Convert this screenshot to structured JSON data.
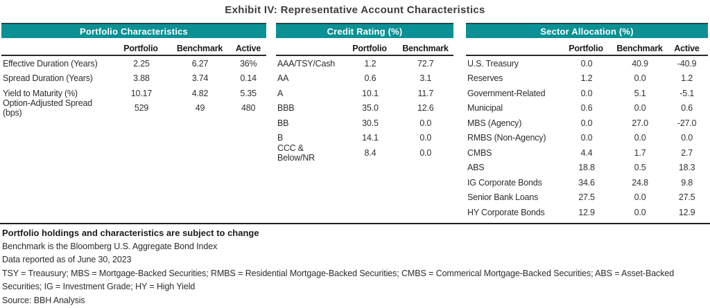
{
  "title": "Exhibit IV: Representative Account Characteristics",
  "colors": {
    "teal": "#0a9195",
    "rule": "#201d1b"
  },
  "tables": [
    {
      "name": "portfolio-characteristics",
      "header": "Portfolio Characteristics",
      "columns": [
        "",
        "Portfolio",
        "Benchmark",
        "Active"
      ],
      "rows": [
        [
          "Effective Duration (Years)",
          "2.25",
          "6.27",
          "36%"
        ],
        [
          "Spread Duration (Years)",
          "3.88",
          "3.74",
          "0.14"
        ],
        [
          "Yield to Maturity (%)",
          "10.17",
          "4.82",
          "5.35"
        ],
        [
          "Option-Adjusted Spread (bps)",
          "529",
          "49",
          "480"
        ]
      ]
    },
    {
      "name": "credit-rating",
      "header": "Credit Rating (%)",
      "columns": [
        "",
        "Portfolio",
        "Benchmark"
      ],
      "rows": [
        [
          "AAA/TSY/Cash",
          "1.2",
          "72.7"
        ],
        [
          "AA",
          "0.6",
          "3.1"
        ],
        [
          "A",
          "10.1",
          "11.7"
        ],
        [
          "BBB",
          "35.0",
          "12.6"
        ],
        [
          "BB",
          "30.5",
          "0.0"
        ],
        [
          "B",
          "14.1",
          "0.0"
        ],
        [
          "CCC & Below/NR",
          "8.4",
          "0.0"
        ]
      ]
    },
    {
      "name": "sector-allocation",
      "header": "Sector Allocation (%)",
      "columns": [
        "",
        "Portfolio",
        "Benchmark",
        "Active"
      ],
      "rows": [
        [
          "U.S. Treasury",
          "0.0",
          "40.9",
          "-40.9"
        ],
        [
          "Reserves",
          "1.2",
          "0.0",
          "1.2"
        ],
        [
          "Government-Related",
          "0.0",
          "5.1",
          "-5.1"
        ],
        [
          "Municipal",
          "0.6",
          "0.0",
          "0.6"
        ],
        [
          "MBS (Agency)",
          "0.0",
          "27.0",
          "-27.0"
        ],
        [
          "RMBS (Non-Agency)",
          "0.0",
          "0.0",
          "0.0"
        ],
        [
          "CMBS",
          "4.4",
          "1.7",
          "2.7"
        ],
        [
          "ABS",
          "18.8",
          "0.5",
          "18.3"
        ],
        [
          "IG Corporate Bonds",
          "34.6",
          "24.8",
          "9.8"
        ],
        [
          "Senior Bank Loans",
          "27.5",
          "0.0",
          "27.5"
        ],
        [
          "HY Corporate Bonds",
          "12.9",
          "0.0",
          "12.9"
        ]
      ]
    }
  ],
  "footnotes": {
    "bold_line": "Portfolio holdings and characteristics are subject to change",
    "lines": [
      "Benchmark is the Bloomberg U.S. Aggregate Bond Index",
      "Data reported as of June 30, 2023",
      "TSY = Treausury; MBS = Mortgage-Backed Securities; RMBS = Residential Mortgage-Backed Securities; CMBS = Commerical Mortgage-Backed Securities; ABS = Asset-Backed",
      "Securities; IG = Investment Grade; HY = High Yield",
      "Source: BBH Analysis"
    ]
  }
}
